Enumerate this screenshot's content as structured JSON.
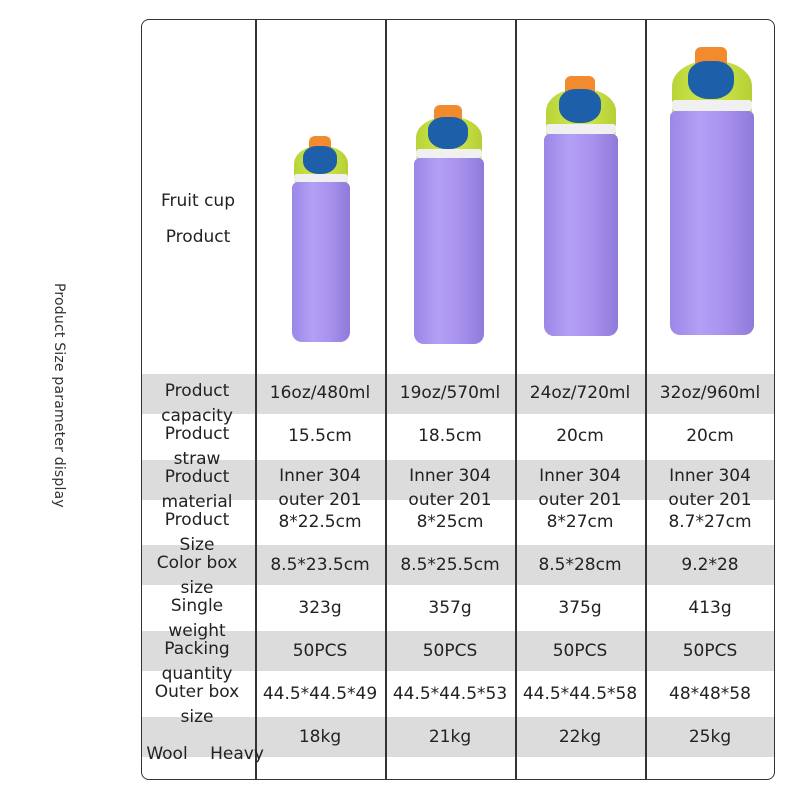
{
  "side_title": "Product Size parameter display",
  "header": {
    "line1": "Fruit cup",
    "line2": "Product"
  },
  "rows": [
    {
      "label": [
        "Product",
        "capacity"
      ],
      "values": [
        "16oz/480ml",
        "19oz/570ml",
        "24oz/720ml",
        "32oz/960ml"
      ]
    },
    {
      "label": [
        "Product",
        "straw"
      ],
      "values": [
        "15.5cm",
        "18.5cm",
        "20cm",
        "20cm"
      ]
    },
    {
      "label": [
        "Product",
        "material"
      ],
      "values": [
        "Inner 304 outer 201",
        "Inner 304 outer 201",
        "Inner 304 outer 201",
        "Inner 304 outer 201"
      ]
    },
    {
      "label": [
        "Product",
        "Size"
      ],
      "values": [
        "8*22.5cm",
        "8*25cm",
        "8*27cm",
        "8.7*27cm"
      ]
    },
    {
      "label": [
        "Color box",
        "size"
      ],
      "values": [
        "8.5*23.5cm",
        "8.5*25.5cm",
        "8.5*28cm",
        "9.2*28"
      ]
    },
    {
      "label": [
        "Single",
        "weight"
      ],
      "values": [
        "323g",
        "357g",
        "375g",
        "413g"
      ]
    },
    {
      "label": [
        "Packing",
        "quantity"
      ],
      "values": [
        "50PCS",
        "50PCS",
        "50PCS",
        "50PCS"
      ]
    },
    {
      "label": [
        "Outer box",
        "size"
      ],
      "values": [
        "44.5*44.5*49",
        "44.5*44.5*53",
        "44.5*44.5*58",
        "48*48*58"
      ]
    },
    {
      "label": [
        "Wool",
        "Heavy"
      ],
      "values": [
        "18kg",
        "21kg",
        "22kg",
        "25kg"
      ]
    }
  ],
  "bottle_icon": "water-bottle-purple-green-lid",
  "colors": {
    "band": "#dcdcdc",
    "bottle_body": "#a892ee",
    "lid": "#c9e044",
    "spout": "#1d5fa8",
    "cap": "#f28a2e"
  }
}
